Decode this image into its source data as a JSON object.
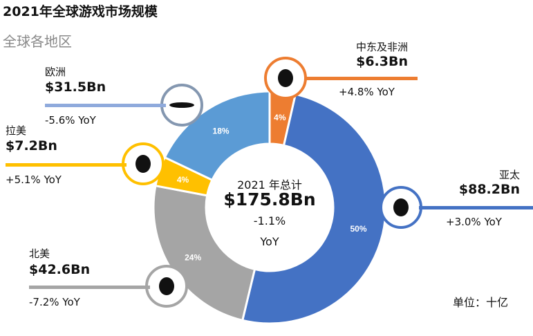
{
  "title": "2021年全球游戏市场规模",
  "subtitle": "全球各地区",
  "unit": "单位：十亿",
  "center": {
    "year_label": "2021 年总计",
    "total": "$175.8Bn",
    "change": "-1.1%",
    "yoy": "YoY"
  },
  "chart_data": {
    "type": "pie",
    "donut": true,
    "title": "2021年全球游戏市场规模",
    "subtitle": "全球各地区",
    "categories": [
      "中东及非洲",
      "亚太",
      "北美",
      "拉美",
      "欧洲"
    ],
    "values": [
      6.3,
      88.2,
      42.6,
      7.2,
      31.5
    ],
    "percent_labels": [
      "4%",
      "50%",
      "24%",
      "4%",
      "18%"
    ],
    "value_labels": [
      "$6.3Bn",
      "$88.2Bn",
      "$42.6Bn",
      "$7.2Bn",
      "$31.5Bn"
    ],
    "yoy_labels": [
      "+4.8% YoY",
      "+3.0% YoY",
      "-7.2% YoY",
      "+5.1% YoY",
      "-5.6% YoY"
    ],
    "colors": [
      "#ED7D31",
      "#4472C4",
      "#A5A5A5",
      "#FFC000",
      "#5B9BD5"
    ],
    "unit": "十亿"
  }
}
